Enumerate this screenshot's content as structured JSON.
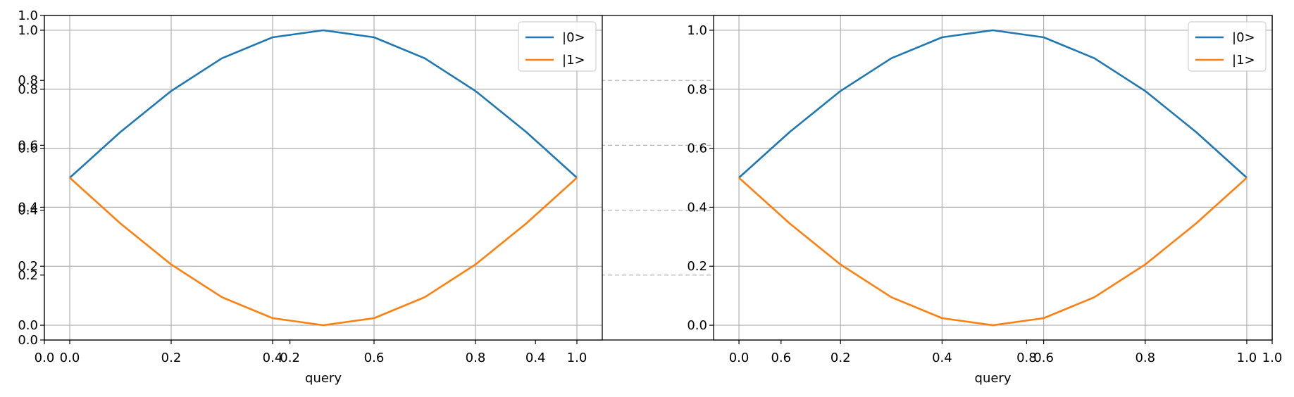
{
  "chart_data": [
    {
      "type": "line",
      "panel": "left",
      "xlabel": "query",
      "xlim": [
        -0.05,
        1.05
      ],
      "ylim": [
        -0.05,
        1.05
      ],
      "grid": true,
      "legend_placement": "top-right",
      "x": [
        0.0,
        0.1,
        0.2,
        0.3,
        0.4,
        0.5,
        0.6,
        0.7,
        0.8,
        0.9,
        1.0
      ],
      "x_ticks": [
        "0.0",
        "0.2",
        "0.4",
        "0.6",
        "0.8",
        "1.0"
      ],
      "y_ticks": [
        "0.0",
        "0.2",
        "0.4",
        "0.6",
        "0.8",
        "1.0"
      ],
      "series": [
        {
          "name": "|0>",
          "color": "#1f77b4",
          "values": [
            0.5,
            0.655,
            0.794,
            0.905,
            0.976,
            1.0,
            0.976,
            0.905,
            0.794,
            0.655,
            0.5
          ]
        },
        {
          "name": "|1>",
          "color": "#ff7f0e",
          "values": [
            0.5,
            0.345,
            0.206,
            0.095,
            0.024,
            0.0,
            0.024,
            0.095,
            0.206,
            0.345,
            0.5
          ]
        }
      ]
    },
    {
      "type": "line",
      "panel": "right",
      "xlabel": "query",
      "xlim": [
        -0.05,
        1.05
      ],
      "ylim": [
        -0.05,
        1.05
      ],
      "grid": true,
      "legend_placement": "top-right",
      "x": [
        0.0,
        0.1,
        0.2,
        0.3,
        0.4,
        0.5,
        0.6,
        0.7,
        0.8,
        0.9,
        1.0
      ],
      "x_ticks": [
        "0.0",
        "0.2",
        "0.4",
        "0.6",
        "0.8",
        "1.0"
      ],
      "y_ticks": [
        "0.0",
        "0.2",
        "0.4",
        "0.6",
        "0.8",
        "1.0"
      ],
      "series": [
        {
          "name": "|0>",
          "color": "#1f77b4",
          "values": [
            0.5,
            0.655,
            0.794,
            0.905,
            0.976,
            1.0,
            0.976,
            0.905,
            0.794,
            0.655,
            0.5
          ]
        },
        {
          "name": "|1>",
          "color": "#ff7f0e",
          "values": [
            0.5,
            0.345,
            0.206,
            0.095,
            0.024,
            0.0,
            0.024,
            0.095,
            0.206,
            0.345,
            0.5
          ]
        }
      ]
    }
  ],
  "background_axes": {
    "x_ticks": [
      "0.0",
      "0.2",
      "0.4",
      "0.6",
      "0.8",
      "1.0"
    ],
    "y_ticks": [
      "0.0",
      "0.2",
      "0.4",
      "0.6",
      "0.8",
      "1.0"
    ]
  }
}
